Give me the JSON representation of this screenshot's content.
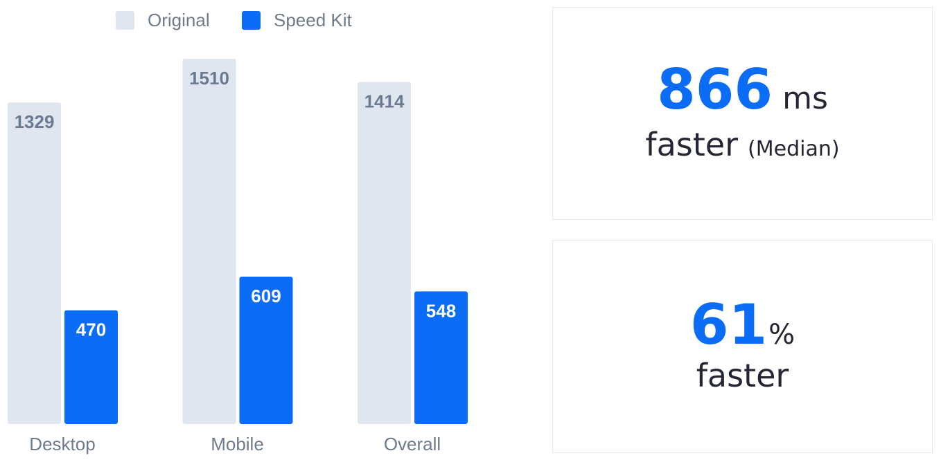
{
  "chart_data": {
    "type": "bar",
    "categories": [
      "Desktop",
      "Mobile",
      "Overall"
    ],
    "series": [
      {
        "name": "Original",
        "color": "#e0e6ef",
        "label_color": "#6b7a90",
        "values": [
          1329,
          1510,
          1414
        ]
      },
      {
        "name": "Speed Kit",
        "color": "#0b6cf6",
        "label_color": "#ffffff",
        "values": [
          470,
          609,
          548
        ]
      }
    ]
  },
  "cards": [
    {
      "value": "866",
      "unit": "ms",
      "label": "faster",
      "note": "(Median)"
    },
    {
      "value": "61",
      "unit": "%",
      "label": "faster"
    }
  ]
}
